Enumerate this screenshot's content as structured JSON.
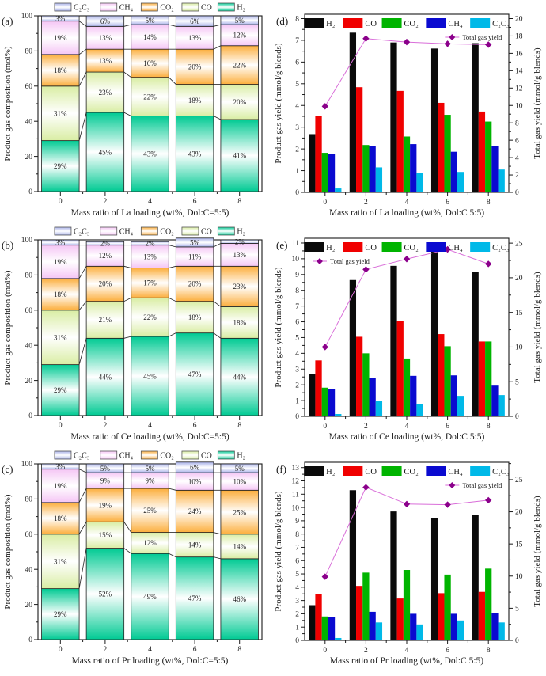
{
  "chart_data": [
    {
      "id": "a",
      "label": "(a)",
      "type": "stacked",
      "title": "",
      "xlabel": "Mass ratio of La loading (wt%, Dol:C=5:5)",
      "ylabel": "Product gas composition (mol%)",
      "categories": [
        "0",
        "2",
        "4",
        "6",
        "8"
      ],
      "ylim": [
        0,
        100
      ],
      "ytick_major": 20,
      "ytick_minor": 10,
      "legend_position": "top-outside",
      "series": [
        {
          "name": "H₂",
          "color": "#00ca93",
          "values": [
            29,
            45,
            43,
            43,
            41
          ]
        },
        {
          "name": "CO",
          "color": "#d9eda3",
          "values": [
            31,
            23,
            22,
            18,
            20
          ]
        },
        {
          "name": "CO₂",
          "color": "#fcae3c",
          "values": [
            18,
            13,
            16,
            20,
            22
          ]
        },
        {
          "name": "CH₄",
          "color": "#f5c6f5",
          "values": [
            19,
            13,
            14,
            13,
            12
          ]
        },
        {
          "name": "C₂C₃",
          "color": "#a9b2ea",
          "values": [
            3,
            6,
            5,
            6,
            5
          ]
        }
      ]
    },
    {
      "id": "b",
      "label": "(b)",
      "type": "stacked",
      "title": "",
      "xlabel": "Mass ratio of Ce loading (wt%, Dol:C=5:5)",
      "ylabel": "Product gas composition (mol%)",
      "categories": [
        "0",
        "2",
        "4",
        "6",
        "8"
      ],
      "ylim": [
        0,
        100
      ],
      "ytick_major": 20,
      "ytick_minor": 10,
      "legend_position": "top-outside",
      "series": [
        {
          "name": "H₂",
          "color": "#00ca93",
          "values": [
            29,
            44,
            45,
            47,
            44
          ]
        },
        {
          "name": "CO",
          "color": "#d9eda3",
          "values": [
            31,
            21,
            22,
            18,
            18
          ]
        },
        {
          "name": "CO₂",
          "color": "#fcae3c",
          "values": [
            18,
            20,
            17,
            20,
            23
          ]
        },
        {
          "name": "CH₄",
          "color": "#f5c6f5",
          "values": [
            19,
            12,
            13,
            11,
            13
          ]
        },
        {
          "name": "C₂C₃",
          "color": "#a9b2ea",
          "values": [
            3,
            2,
            2,
            5,
            2
          ]
        }
      ]
    },
    {
      "id": "c",
      "label": "(c)",
      "type": "stacked",
      "title": "",
      "xlabel": "Mass ratio of Pr loading (wt%, Dol:C=5:5)",
      "ylabel": "Product gas composition (mol%)",
      "categories": [
        "0",
        "2",
        "4",
        "6",
        "8"
      ],
      "ylim": [
        0,
        100
      ],
      "ytick_major": 20,
      "ytick_minor": 10,
      "legend_position": "top-outside",
      "series": [
        {
          "name": "H₂",
          "color": "#00ca93",
          "values": [
            29,
            52,
            49,
            47,
            46
          ]
        },
        {
          "name": "CO",
          "color": "#d9eda3",
          "values": [
            31,
            15,
            12,
            14,
            14
          ]
        },
        {
          "name": "CO₂",
          "color": "#fcae3c",
          "values": [
            18,
            19,
            25,
            24,
            25
          ]
        },
        {
          "name": "CH₄",
          "color": "#f5c6f5",
          "values": [
            19,
            9,
            9,
            10,
            10
          ]
        },
        {
          "name": "C₂C₃",
          "color": "#a9b2ea",
          "values": [
            3,
            5,
            5,
            6,
            5
          ]
        }
      ]
    },
    {
      "id": "d",
      "label": "(d)",
      "type": "grouped",
      "title": "",
      "xlabel": "Mass ratio of La loading (wt%, Dol:C 5:5)",
      "ylabel_left": "Product gas yield (mmol/g blends)",
      "ylabel_right": "Total gas yield (mmol/g blends)",
      "categories": [
        "0",
        "2",
        "4",
        "6",
        "8"
      ],
      "ylim_left": [
        0,
        8.2
      ],
      "yticks_left": [
        0,
        1,
        2,
        3,
        4,
        5,
        6,
        7,
        8
      ],
      "yminor_left": 0.5,
      "ylim_right": [
        0,
        20.5
      ],
      "yticks_right": [
        0,
        2,
        4,
        6,
        8,
        10,
        12,
        14,
        16,
        18,
        20
      ],
      "yminor_right": 1,
      "series": [
        {
          "name": "H₂",
          "color": "#0a0a0a",
          "values": [
            2.68,
            7.35,
            6.9,
            6.62,
            6.87
          ]
        },
        {
          "name": "CO",
          "color": "#f00000",
          "values": [
            3.52,
            4.84,
            4.67,
            4.12,
            3.72
          ]
        },
        {
          "name": "CO₂",
          "color": "#00b400",
          "values": [
            1.82,
            2.18,
            2.57,
            3.57,
            3.26
          ]
        },
        {
          "name": "CH₄",
          "color": "#0a0ad0",
          "values": [
            1.75,
            2.13,
            2.22,
            1.87,
            2.12
          ]
        },
        {
          "name": "C₂C₃",
          "color": "#00b9e8",
          "values": [
            0.18,
            1.15,
            0.9,
            0.94,
            1.05
          ]
        }
      ],
      "line": {
        "name": "Total gas yield",
        "values": [
          9.9,
          17.7,
          17.3,
          17.1,
          17.0
        ],
        "color": "#d96ed9",
        "marker_color": "#8b008b",
        "text_color": "#e100e1",
        "legend_align": "right"
      }
    },
    {
      "id": "e",
      "label": "(e)",
      "type": "grouped",
      "title": "",
      "xlabel": "Mass ratio of Ce loading (wt%, Dol:C 5:5)",
      "ylabel_left": "Product gas yield (mmol/g blends)",
      "ylabel_right": "Total gas yield (mmol/g blends)",
      "categories": [
        "0",
        "2",
        "4",
        "6",
        "8"
      ],
      "ylim_left": [
        0,
        11.3
      ],
      "yticks_left": [
        0,
        1,
        2,
        3,
        4,
        5,
        6,
        7,
        8,
        9,
        10,
        11
      ],
      "yminor_left": 0.5,
      "ylim_right": [
        0,
        25.7
      ],
      "yticks_right": [
        0,
        5,
        10,
        15,
        20,
        25
      ],
      "yminor_right": 2.5,
      "series": [
        {
          "name": "H₂",
          "color": "#0a0a0a",
          "values": [
            2.7,
            8.65,
            9.55,
            10.5,
            9.15
          ]
        },
        {
          "name": "CO",
          "color": "#f00000",
          "values": [
            3.55,
            5.05,
            6.05,
            5.22,
            4.75
          ]
        },
        {
          "name": "CO₂",
          "color": "#00b400",
          "values": [
            1.82,
            4.0,
            3.67,
            4.45,
            4.75
          ]
        },
        {
          "name": "CH₄",
          "color": "#0a0ad0",
          "values": [
            1.75,
            2.45,
            2.57,
            2.6,
            1.95
          ]
        },
        {
          "name": "C₂C₃",
          "color": "#00b9e8",
          "values": [
            0.15,
            1.0,
            0.77,
            1.3,
            1.35
          ]
        }
      ],
      "line": {
        "name": "Total gas yield",
        "values": [
          10.0,
          21.2,
          22.7,
          24.1,
          22.0
        ],
        "color": "#d96ed9",
        "marker_color": "#8b008b",
        "text_color": "#e100e1",
        "legend_align": "left"
      }
    },
    {
      "id": "f",
      "label": "(f)",
      "type": "grouped",
      "title": "",
      "xlabel": "Mass ratio of Pr loading (wt%, Dol:C 5:5)",
      "ylabel_left": "Product gas yield (mmol/g blends)",
      "ylabel_right": "Total gas yield (mmol/g blends)",
      "categories": [
        "0",
        "2",
        "4",
        "6",
        "8"
      ],
      "ylim_left": [
        0,
        13.4
      ],
      "yticks_left": [
        0,
        1,
        2,
        3,
        4,
        5,
        6,
        7,
        8,
        9,
        10,
        11,
        12,
        13
      ],
      "yminor_left": 0.5,
      "ylim_right": [
        0,
        27.7
      ],
      "yticks_right": [
        0,
        5,
        10,
        15,
        20,
        25
      ],
      "yminor_right": 2.5,
      "series": [
        {
          "name": "H₂",
          "color": "#0a0a0a",
          "values": [
            2.65,
            11.3,
            9.7,
            9.2,
            9.45
          ]
        },
        {
          "name": "CO",
          "color": "#f00000",
          "values": [
            3.5,
            4.1,
            3.15,
            3.55,
            3.65
          ]
        },
        {
          "name": "CO₂",
          "color": "#00b400",
          "values": [
            1.8,
            5.1,
            5.3,
            4.95,
            5.4
          ]
        },
        {
          "name": "CH₄",
          "color": "#0a0ad0",
          "values": [
            1.75,
            2.15,
            2.0,
            2.0,
            2.05
          ]
        },
        {
          "name": "C₂C₃",
          "color": "#00b9e8",
          "values": [
            0.18,
            1.35,
            1.2,
            1.5,
            1.35
          ]
        }
      ],
      "line": {
        "name": "Total gas yield",
        "values": [
          9.9,
          23.8,
          21.2,
          21.1,
          21.8
        ],
        "color": "#d96ed9",
        "marker_color": "#8b008b",
        "text_color": "#e100e1",
        "legend_align": "right"
      }
    }
  ],
  "axis_color": "#1a1a1a"
}
